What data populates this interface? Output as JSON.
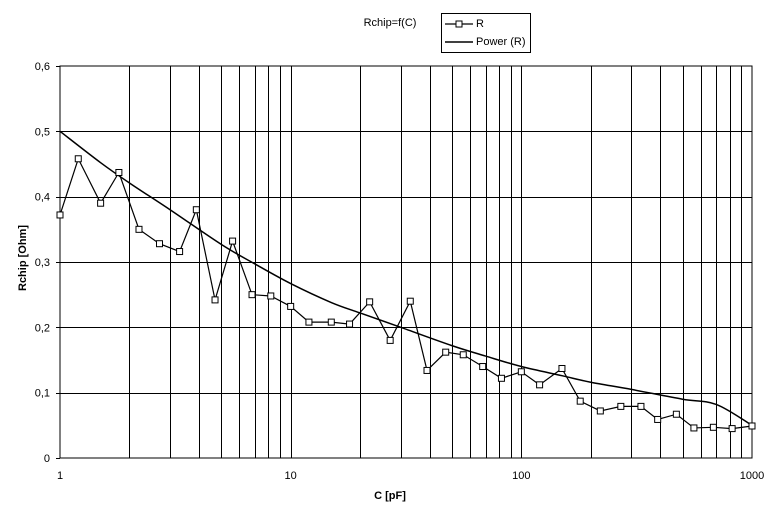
{
  "chart_data": {
    "type": "line",
    "title": "Rchip=f(C)",
    "xlabel": "C [pF]",
    "ylabel": "Rchip [Ohm]",
    "x_scale": "log",
    "xlim": [
      1,
      1000
    ],
    "ylim": [
      0,
      0.6
    ],
    "x_ticks": [
      "1",
      "10",
      "100",
      "1000"
    ],
    "y_ticks": [
      "0",
      "0,1",
      "0,2",
      "0,3",
      "0,4",
      "0,5",
      "0,6"
    ],
    "grid": true,
    "legend": "top-right",
    "series": [
      {
        "name": "R",
        "marker": "square",
        "x": [
          1,
          1.2,
          1.5,
          1.8,
          2.2,
          2.7,
          3.3,
          3.9,
          4.7,
          5.6,
          6.8,
          8.2,
          10,
          12,
          15,
          18,
          22,
          27,
          33,
          39,
          47,
          56,
          68,
          82,
          100,
          120,
          150,
          180,
          220,
          270,
          330,
          390,
          470,
          560,
          680,
          820,
          1000
        ],
        "y": [
          0.372,
          0.458,
          0.39,
          0.437,
          0.35,
          0.328,
          0.316,
          0.38,
          0.242,
          0.332,
          0.25,
          0.248,
          0.232,
          0.208,
          0.208,
          0.205,
          0.239,
          0.18,
          0.24,
          0.134,
          0.162,
          0.158,
          0.14,
          0.122,
          0.132,
          0.112,
          0.137,
          0.087,
          0.072,
          0.079,
          0.079,
          0.059,
          0.067,
          0.046,
          0.047,
          0.045,
          0.049
        ]
      },
      {
        "name": "Power (R)",
        "type": "power-fit",
        "x": [
          1,
          1.5,
          2,
          3,
          5,
          7,
          10,
          15,
          20,
          30,
          50,
          70,
          100,
          150,
          200,
          300,
          500,
          700,
          1000
        ],
        "y": [
          0.5,
          0.452,
          0.421,
          0.38,
          0.327,
          0.297,
          0.267,
          0.238,
          0.222,
          0.2,
          0.172,
          0.156,
          0.14,
          0.126,
          0.116,
          0.105,
          0.09,
          0.082,
          0.05
        ]
      }
    ]
  }
}
